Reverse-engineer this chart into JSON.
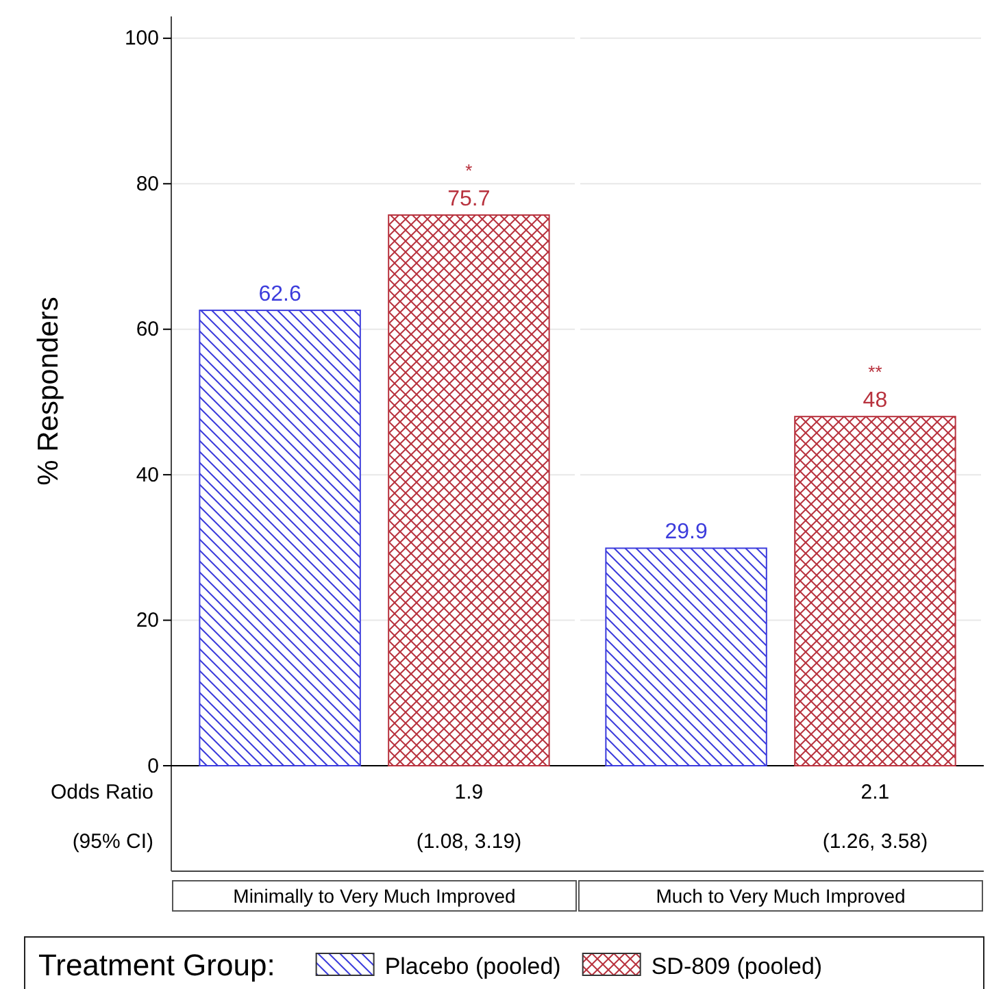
{
  "chart_data": {
    "type": "bar",
    "ylabel": "% Responders",
    "legend_title": "Treatment Group:",
    "legend": "bottom",
    "grid": "y",
    "data_labels": true,
    "categories": [
      "Minimally to Very Much Improved",
      "Much to Very Much Improved"
    ],
    "series": [
      {
        "name": "Placebo (pooled)",
        "color": "#3b3bdc",
        "values": [
          62.6,
          29.9
        ]
      },
      {
        "name": "SD-809 (pooled)",
        "color": "#b8323e",
        "values": [
          75.7,
          48
        ]
      }
    ],
    "ylim": [
      0,
      103
    ],
    "yticks": [
      0,
      20,
      40,
      60,
      80,
      100
    ],
    "annotations": [
      "Odds Ratio",
      "(95% CI)",
      "*",
      "1.9",
      "(1.08, 3.19)",
      "**",
      "2.1",
      "(1.26, 3.58)"
    ]
  }
}
